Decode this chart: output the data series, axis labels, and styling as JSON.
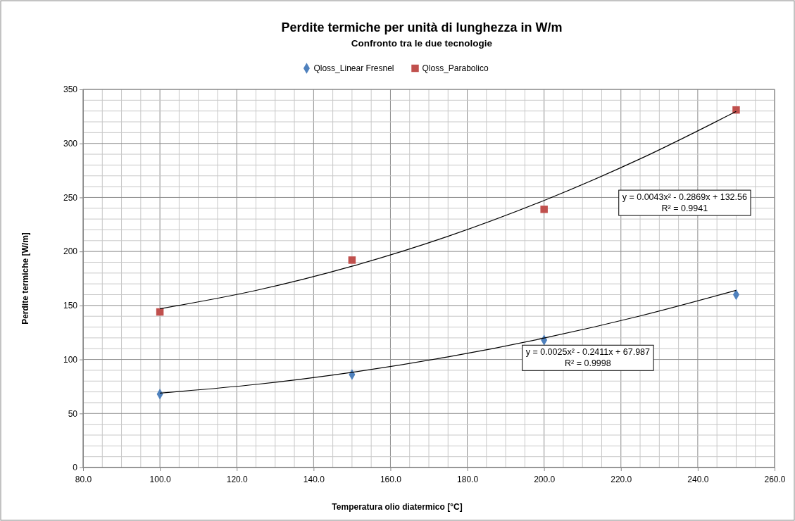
{
  "chart_data": {
    "type": "scatter",
    "title": "Perdite termiche per unità di lunghezza in W/m",
    "subtitle": "Confronto tra le due tecnologie",
    "xlabel": "Temperatura olio diatermico  [°C]",
    "ylabel": "Perdite termiche  [W/m]",
    "xlim": [
      80,
      260
    ],
    "xticks": [
      {
        "value": 80,
        "label": "80.0"
      },
      {
        "value": 100,
        "label": "100.0"
      },
      {
        "value": 120,
        "label": "120.0"
      },
      {
        "value": 140,
        "label": "140.0"
      },
      {
        "value": 160,
        "label": "160.0"
      },
      {
        "value": 180,
        "label": "180.0"
      },
      {
        "value": 200,
        "label": "200.0"
      },
      {
        "value": 220,
        "label": "220.0"
      },
      {
        "value": 240,
        "label": "240.0"
      },
      {
        "value": 260,
        "label": "260.0"
      }
    ],
    "ylim": [
      0,
      350
    ],
    "yticks": [
      0,
      50,
      100,
      150,
      200,
      250,
      300,
      350
    ],
    "grid": true,
    "legend": "top",
    "x": [
      100,
      150,
      200,
      250
    ],
    "series": [
      {
        "name": "Qloss_Linear Fresnel",
        "color": "#4f81bd",
        "marker": "diamond",
        "values": [
          68,
          86,
          118,
          160
        ]
      },
      {
        "name": "Qloss_Parabolico",
        "color": "#c0504d",
        "marker": "square",
        "values": [
          144,
          192,
          239,
          331
        ]
      },
      {
        "type": "line",
        "color": "#000000",
        "marker": "none",
        "x": [
          100,
          125,
          150,
          175,
          200,
          225,
          250
        ],
        "values": [
          68.9,
          76.9,
          88.1,
          102.4,
          119.8,
          140.3,
          164.0
        ]
      },
      {
        "type": "line",
        "color": "#000000",
        "marker": "none",
        "x": [
          100,
          125,
          150,
          175,
          200,
          225,
          250
        ],
        "values": [
          146.9,
          163.9,
          186.3,
          214.0,
          247.2,
          285.7,
          329.6
        ]
      }
    ],
    "annotations": [
      "y = 0.0043x² - 0.2869x + 132.56\nR² = 0.9941",
      "y = 0.0025x² - 0.2411x + 67.987\nR² = 0.9998"
    ]
  }
}
